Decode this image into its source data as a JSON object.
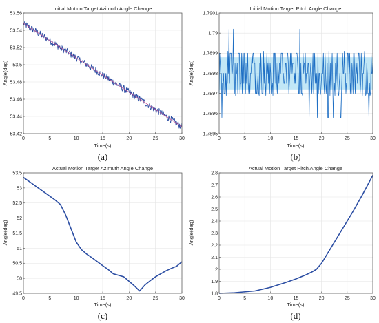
{
  "colors": {
    "series": "#2c4ea3",
    "noise": "#1f6fc4",
    "fit": "#c0428c",
    "band": "#8fd4ef"
  },
  "chart_data": [
    {
      "id": "a",
      "type": "line",
      "title": "Initial Motion Target Azimuth Angle Change",
      "xlabel": "Time(s)",
      "ylabel": "Angle(deg)",
      "caption": "(a)",
      "xlim": [
        0,
        30
      ],
      "ylim": [
        53.42,
        53.56
      ],
      "xticks": [
        "0",
        "5",
        "10",
        "15",
        "20",
        "25",
        "30"
      ],
      "yticks": [
        "53.42",
        "53.44",
        "53.46",
        "53.48",
        "53.5",
        "53.52",
        "53.54",
        "53.56"
      ],
      "grid": true,
      "series": [
        {
          "x": [
            0,
            30
          ],
          "y": [
            53.548,
            53.428
          ],
          "noise": 0.004
        }
      ]
    },
    {
      "id": "b",
      "type": "line",
      "title": "Initial Motion Target Pitch Angle Change",
      "xlabel": "Time(s)",
      "ylabel": "Angle(deg)",
      "caption": "(b)",
      "xlim": [
        0,
        30
      ],
      "ylim": [
        1.7895,
        1.7901
      ],
      "xticks": [
        "0",
        "5",
        "10",
        "15",
        "20",
        "25",
        "30"
      ],
      "yticks": [
        "1.7895",
        "1.7896",
        "1.7897",
        "1.7898",
        "1.7899",
        "1.79",
        "1.7901"
      ],
      "grid": true,
      "series": [
        {
          "x": [
            0,
            30
          ],
          "y": [
            1.7898,
            1.7898
          ],
          "noise": 0.0001
        }
      ]
    },
    {
      "id": "c",
      "type": "line",
      "title": "Actual Motion Target Azimuth Angle Change",
      "xlabel": "Time(s)",
      "ylabel": "Angle(deg)",
      "caption": "(c)",
      "xlim": [
        0,
        30
      ],
      "ylim": [
        49.5,
        53.5
      ],
      "xticks": [
        "0",
        "5",
        "10",
        "15",
        "20",
        "25",
        "30"
      ],
      "yticks": [
        "49.5",
        "50",
        "50.5",
        "51",
        "51.5",
        "52",
        "52.5",
        "53",
        "53.5"
      ],
      "grid": true,
      "series": [
        {
          "x": [
            0,
            2,
            4,
            6,
            7,
            8,
            9,
            10,
            11,
            12,
            13,
            14,
            15,
            16,
            17,
            18,
            19,
            20,
            21,
            22,
            23,
            24,
            25,
            26,
            27,
            28,
            29,
            30
          ],
          "y": [
            53.35,
            53.1,
            52.85,
            52.6,
            52.45,
            52.1,
            51.65,
            51.2,
            50.95,
            50.8,
            50.68,
            50.55,
            50.42,
            50.3,
            50.15,
            50.1,
            50.05,
            49.9,
            49.75,
            49.58,
            49.78,
            49.92,
            50.05,
            50.15,
            50.25,
            50.33,
            50.4,
            50.55
          ]
        }
      ]
    },
    {
      "id": "d",
      "type": "line",
      "title": "Actual Motion Target Pitch Angle Change",
      "xlabel": "Time(s)",
      "ylabel": "Angle(deg)",
      "caption": "(d)",
      "xlim": [
        0,
        30
      ],
      "ylim": [
        1.8,
        2.8
      ],
      "xticks": [
        "0",
        "5",
        "10",
        "15",
        "20",
        "25",
        "30"
      ],
      "yticks": [
        "1.8",
        "1.9",
        "2",
        "2.1",
        "2.2",
        "2.3",
        "2.4",
        "2.5",
        "2.6",
        "2.7",
        "2.8"
      ],
      "grid": true,
      "series": [
        {
          "x": [
            0,
            3,
            7,
            10,
            13,
            15,
            17,
            18,
            19,
            20,
            21,
            22,
            24,
            26,
            28,
            30
          ],
          "y": [
            1.8,
            1.805,
            1.82,
            1.85,
            1.89,
            1.92,
            1.955,
            1.975,
            2.0,
            2.05,
            2.12,
            2.19,
            2.33,
            2.47,
            2.62,
            2.78
          ]
        }
      ]
    }
  ]
}
